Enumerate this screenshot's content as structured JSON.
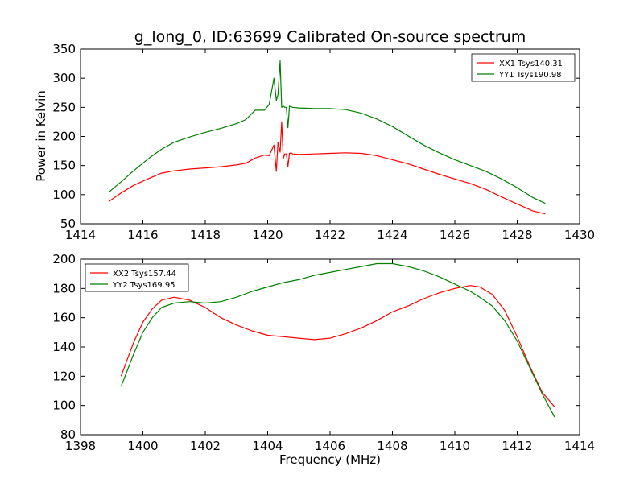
{
  "figure": {
    "title": "g_long_0, ID:63699 Calibrated On-source spectrum",
    "ylabel": "Power in Kelvin",
    "xlabel": "Frequency (MHz)"
  },
  "chart_data": [
    {
      "type": "line",
      "title": "g_long_0, ID:63699 Calibrated On-source spectrum",
      "ylabel": "Power in Kelvin",
      "xlabel": "",
      "xlim": [
        1414,
        1430
      ],
      "ylim": [
        50,
        350
      ],
      "xticks": [
        "1414",
        "1416",
        "1418",
        "1420",
        "1422",
        "1424",
        "1426",
        "1428",
        "1430"
      ],
      "yticks": [
        "50",
        "100",
        "150",
        "200",
        "250",
        "300",
        "350"
      ],
      "grid": false,
      "legend_position": "top-right",
      "series": [
        {
          "name": "XX1 Tsys140.31",
          "color": "#ff0000",
          "x": [
            1414.9,
            1415.3,
            1415.7,
            1416.2,
            1416.6,
            1417.0,
            1417.5,
            1418.0,
            1418.5,
            1419.0,
            1419.3,
            1419.6,
            1419.9,
            1420.05,
            1420.2,
            1420.28,
            1420.33,
            1420.4,
            1420.45,
            1420.5,
            1420.55,
            1420.6,
            1420.65,
            1420.7,
            1420.75,
            1420.8,
            1421.0,
            1421.5,
            1422.0,
            1422.5,
            1423.0,
            1423.5,
            1424.0,
            1424.5,
            1425.0,
            1425.5,
            1426.0,
            1426.5,
            1427.0,
            1427.5,
            1428.0,
            1428.5,
            1428.9
          ],
          "y": [
            88,
            103,
            116,
            128,
            137,
            141,
            144,
            146,
            148,
            151,
            154,
            163,
            168,
            167,
            185,
            140,
            190,
            173,
            225,
            162,
            170,
            170,
            148,
            171,
            172,
            170,
            169,
            170,
            171,
            172,
            171,
            167,
            160,
            153,
            144,
            135,
            127,
            119,
            109,
            96,
            84,
            72,
            67
          ]
        },
        {
          "name": "YY1 Tsys190.98",
          "color": "#008000",
          "x": [
            1414.9,
            1415.3,
            1415.7,
            1416.2,
            1416.6,
            1417.0,
            1417.5,
            1418.0,
            1418.5,
            1419.0,
            1419.3,
            1419.6,
            1419.9,
            1420.05,
            1420.2,
            1420.28,
            1420.33,
            1420.4,
            1420.45,
            1420.5,
            1420.55,
            1420.6,
            1420.65,
            1420.7,
            1420.75,
            1420.8,
            1421.0,
            1421.5,
            1422.0,
            1422.5,
            1423.0,
            1423.5,
            1424.0,
            1424.5,
            1425.0,
            1425.5,
            1426.0,
            1426.5,
            1427.0,
            1427.5,
            1428.0,
            1428.5,
            1428.9
          ],
          "y": [
            104,
            122,
            141,
            163,
            178,
            190,
            199,
            207,
            214,
            222,
            229,
            245,
            245,
            255,
            300,
            262,
            272,
            330,
            250,
            252,
            250,
            250,
            215,
            252,
            251,
            250,
            249,
            248,
            248,
            246,
            240,
            230,
            217,
            201,
            185,
            172,
            160,
            150,
            140,
            127,
            112,
            95,
            85
          ]
        }
      ]
    },
    {
      "type": "line",
      "title": "",
      "ylabel": "",
      "xlabel": "Frequency (MHz)",
      "xlim": [
        1398,
        1414
      ],
      "ylim": [
        80,
        200
      ],
      "xticks": [
        "1398",
        "1400",
        "1402",
        "1404",
        "1406",
        "1408",
        "1410",
        "1412",
        "1414"
      ],
      "yticks": [
        "80",
        "100",
        "120",
        "140",
        "160",
        "180",
        "200"
      ],
      "grid": false,
      "legend_position": "top-left",
      "series": [
        {
          "name": "XX2 Tsys157.44",
          "color": "#ff0000",
          "x": [
            1399.3,
            1399.7,
            1400.0,
            1400.3,
            1400.6,
            1401.0,
            1401.5,
            1402.0,
            1402.5,
            1403.0,
            1403.5,
            1404.0,
            1404.5,
            1405.0,
            1405.5,
            1406.0,
            1406.5,
            1407.0,
            1407.5,
            1408.0,
            1408.5,
            1409.0,
            1409.5,
            1410.0,
            1410.5,
            1410.8,
            1411.2,
            1411.6,
            1412.0,
            1412.4,
            1412.8,
            1413.2
          ],
          "y": [
            120,
            143,
            157,
            166,
            172,
            174,
            172,
            167,
            160,
            155,
            151,
            148,
            147,
            146,
            145,
            146,
            149,
            153,
            158,
            164,
            168,
            173,
            177,
            180,
            182,
            181,
            176,
            165,
            147,
            127,
            109,
            99
          ]
        },
        {
          "name": "YY2 Tsys169.95",
          "color": "#008000",
          "x": [
            1399.3,
            1399.7,
            1400.0,
            1400.3,
            1400.6,
            1401.0,
            1401.5,
            1402.0,
            1402.5,
            1403.0,
            1403.5,
            1404.0,
            1404.5,
            1405.0,
            1405.5,
            1406.0,
            1406.5,
            1407.0,
            1407.5,
            1408.0,
            1408.5,
            1409.0,
            1409.5,
            1410.0,
            1410.5,
            1410.8,
            1411.2,
            1411.6,
            1412.0,
            1412.4,
            1412.8,
            1413.2
          ],
          "y": [
            113,
            135,
            150,
            160,
            167,
            170,
            171,
            170,
            171,
            174,
            178,
            181,
            184,
            186,
            189,
            191,
            193,
            195,
            197,
            197,
            195,
            192,
            188,
            183,
            178,
            174,
            168,
            158,
            144,
            126,
            108,
            92
          ]
        }
      ]
    }
  ]
}
